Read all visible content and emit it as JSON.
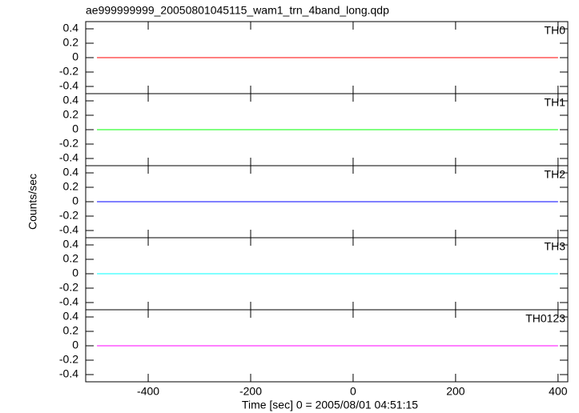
{
  "chart_data": [
    {
      "type": "line",
      "title": "ae999999999_20050801045115_wam1_trn_4band_long.qdp",
      "x": [
        -500,
        400
      ],
      "series": [
        {
          "name": "TH0",
          "color": "#ff0000",
          "values": [
            0,
            0
          ]
        }
      ],
      "xlim": [
        -522,
        419
      ],
      "xticks": [
        -400,
        -200,
        0,
        200,
        400
      ],
      "ylim": [
        -0.5,
        0.5
      ],
      "yticks": [
        0.4,
        0.2,
        0,
        -0.2,
        -0.4
      ]
    },
    {
      "type": "line",
      "x": [
        -500,
        400
      ],
      "series": [
        {
          "name": "TH1",
          "color": "#00ff00",
          "values": [
            0,
            0
          ]
        }
      ],
      "xlim": [
        -522,
        419
      ],
      "xticks": [
        -400,
        -200,
        0,
        200,
        400
      ],
      "ylim": [
        -0.5,
        0.5
      ],
      "yticks": [
        0.4,
        0.2,
        0,
        -0.2,
        -0.4
      ]
    },
    {
      "type": "line",
      "ylabel": "Counts/sec",
      "x": [
        -500,
        400
      ],
      "series": [
        {
          "name": "TH2",
          "color": "#0000ff",
          "values": [
            0,
            0
          ]
        }
      ],
      "xlim": [
        -522,
        419
      ],
      "xticks": [
        -400,
        -200,
        0,
        200,
        400
      ],
      "ylim": [
        -0.5,
        0.5
      ],
      "yticks": [
        0.4,
        0.2,
        0,
        -0.2,
        -0.4
      ]
    },
    {
      "type": "line",
      "x": [
        -500,
        400
      ],
      "series": [
        {
          "name": "TH3",
          "color": "#00ffff",
          "values": [
            0,
            0
          ]
        }
      ],
      "xlim": [
        -522,
        419
      ],
      "xticks": [
        -400,
        -200,
        0,
        200,
        400
      ],
      "ylim": [
        -0.5,
        0.5
      ],
      "yticks": [
        0.4,
        0.2,
        0,
        -0.2,
        -0.4
      ]
    },
    {
      "type": "line",
      "xlabel": "Time [sec] 0 = 2005/08/01 04:51:15",
      "x": [
        -500,
        400
      ],
      "series": [
        {
          "name": "TH0123",
          "color": "#ff00ff",
          "values": [
            0,
            0
          ]
        }
      ],
      "xlim": [
        -522,
        419
      ],
      "xticks": [
        -400,
        -200,
        0,
        200,
        400
      ],
      "ylim": [
        -0.5,
        0.5
      ],
      "yticks": [
        0.4,
        0.2,
        0,
        -0.2,
        -0.4
      ]
    }
  ]
}
